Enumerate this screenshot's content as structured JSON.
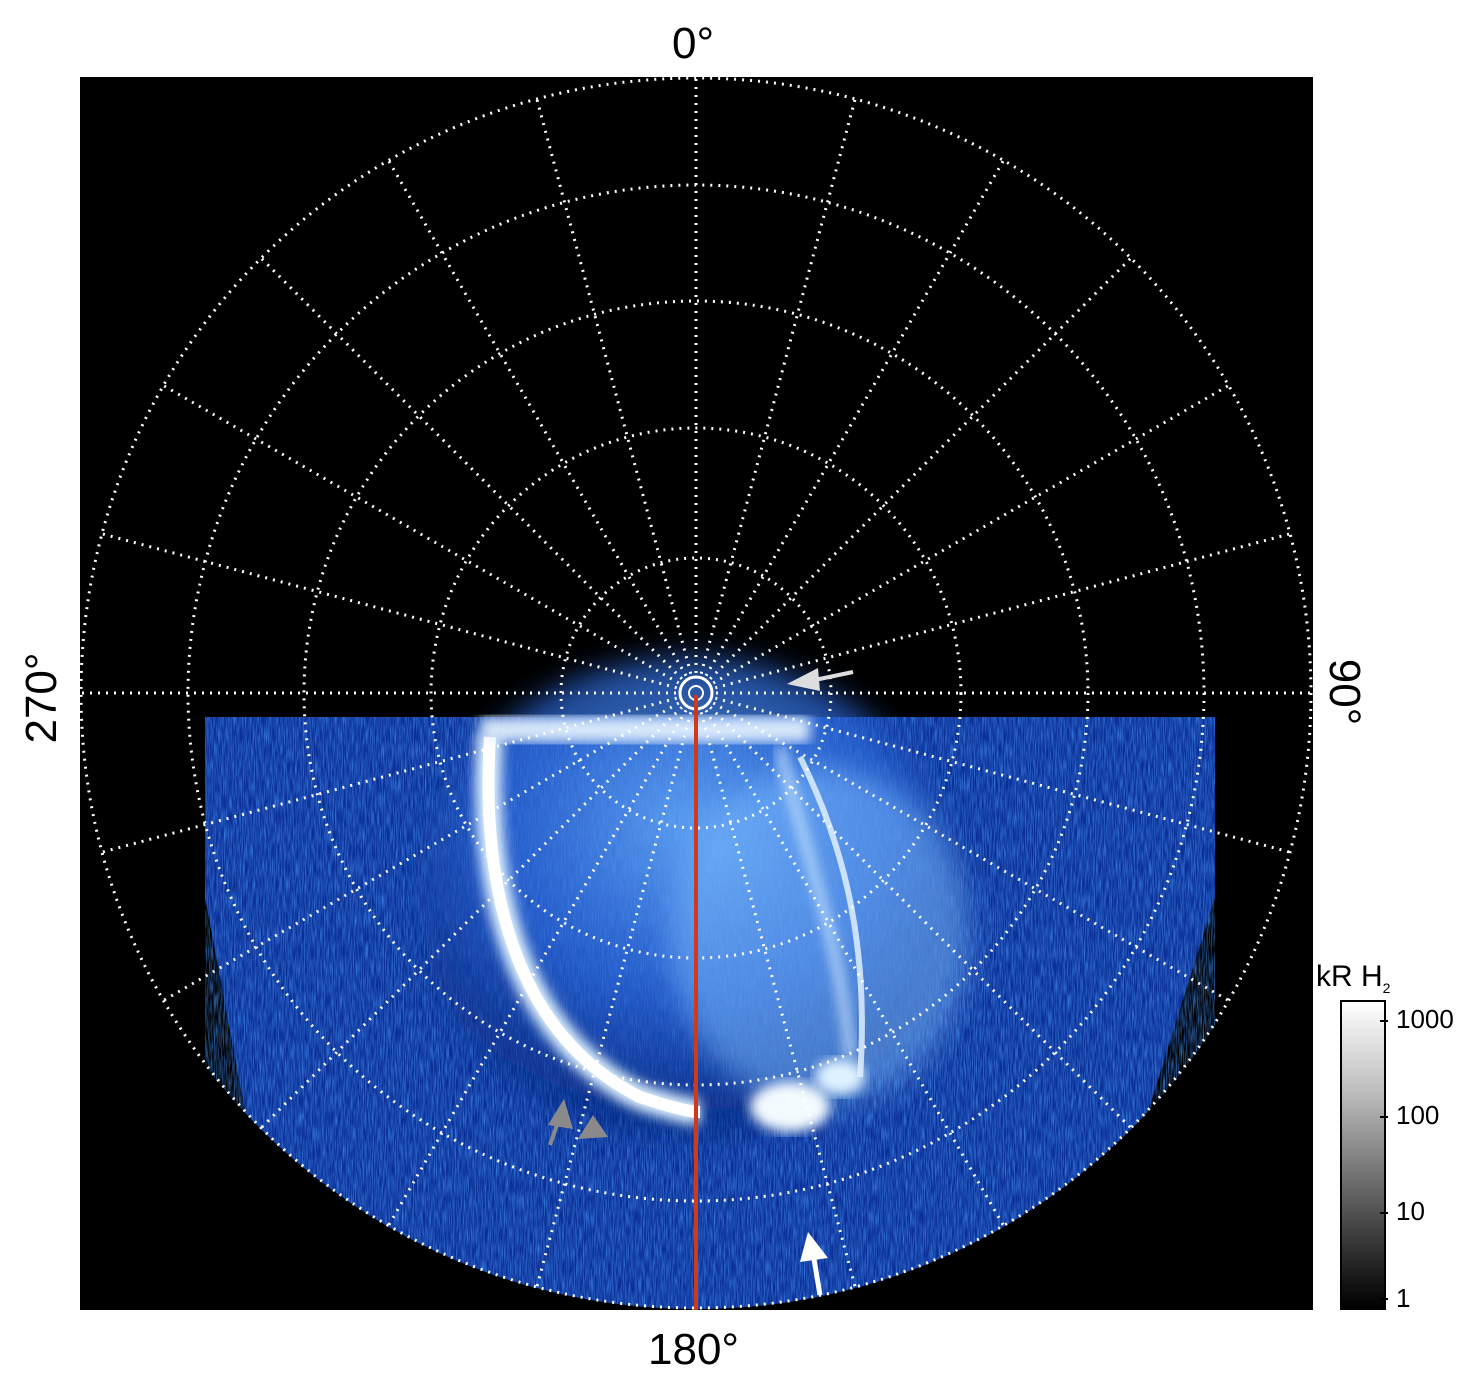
{
  "image": {
    "description_labels": {
      "top": "0°",
      "bottom": "180°",
      "left": "270°",
      "right": "90°"
    }
  },
  "colorbar": {
    "title": "kR H",
    "title_sub": "2",
    "ticks": [
      "1000",
      "100",
      "10",
      "1"
    ]
  },
  "colors": {
    "background": "#000000",
    "aurora_blue": "#1e5adc",
    "aurora_bright": "#ffffff",
    "grid": "#ffffff",
    "meridian_line": "#d03a1a",
    "arrow_light": "#dddddd",
    "arrow_grey": "#8a8a8a"
  }
}
